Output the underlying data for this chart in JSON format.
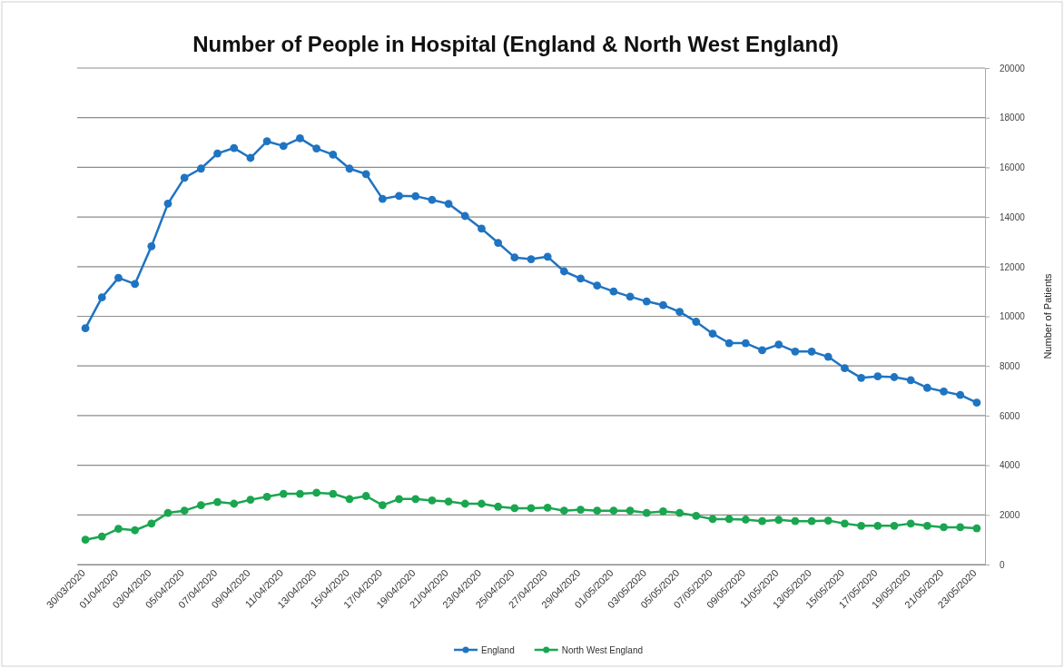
{
  "chart_data": {
    "type": "line",
    "title": "Number of People in Hospital (England & North West England)",
    "ylabel": "Number of Patients",
    "categories": [
      "30/03/2020",
      null,
      "01/04/2020",
      null,
      "03/04/2020",
      null,
      "05/04/2020",
      null,
      "07/04/2020",
      null,
      "09/04/2020",
      null,
      "11/04/2020",
      null,
      "13/04/2020",
      null,
      "15/04/2020",
      null,
      "17/04/2020",
      null,
      "19/04/2020",
      null,
      "21/04/2020",
      null,
      "23/04/2020",
      null,
      "25/04/2020",
      null,
      "27/04/2020",
      null,
      "29/04/2020",
      null,
      "01/05/2020",
      null,
      "03/05/2020",
      null,
      "05/05/2020",
      null,
      "07/05/2020",
      null,
      "09/05/2020",
      null,
      "11/05/2020",
      null,
      "13/05/2020",
      null,
      "15/05/2020",
      null,
      "17/05/2020",
      null,
      "19/05/2020",
      null,
      "21/05/2020",
      null,
      "23/05/2020"
    ],
    "series": [
      {
        "name": "England",
        "color": "#1f74c2",
        "values": [
          9520,
          10760,
          11550,
          11300,
          12820,
          14540,
          15580,
          15950,
          16560,
          16780,
          16380,
          17050,
          16860,
          17170,
          16760,
          16510,
          15950,
          15730,
          14730,
          14850,
          14840,
          14690,
          14530,
          14040,
          13530,
          12960,
          12370,
          12300,
          12400,
          11810,
          11520,
          11240,
          11000,
          10790,
          10600,
          10450,
          10180,
          9780,
          9300,
          8920,
          8920,
          8630,
          8860,
          8580,
          8580,
          8370,
          7910,
          7520,
          7580,
          7550,
          7430,
          7120,
          6970,
          6830,
          6520
        ]
      },
      {
        "name": "North West England",
        "color": "#1aa650",
        "values": [
          1000,
          1130,
          1440,
          1380,
          1650,
          2080,
          2170,
          2390,
          2520,
          2450,
          2610,
          2730,
          2850,
          2850,
          2890,
          2850,
          2640,
          2760,
          2390,
          2640,
          2640,
          2580,
          2540,
          2450,
          2450,
          2330,
          2270,
          2270,
          2290,
          2170,
          2210,
          2170,
          2170,
          2170,
          2080,
          2140,
          2080,
          1960,
          1830,
          1830,
          1810,
          1750,
          1800,
          1750,
          1750,
          1770,
          1650,
          1560,
          1560,
          1560,
          1650,
          1560,
          1500,
          1500,
          1460
        ]
      }
    ],
    "ylim": [
      0,
      20000
    ],
    "yticks": [
      0,
      2000,
      4000,
      6000,
      8000,
      10000,
      12000,
      14000,
      16000,
      18000,
      20000
    ],
    "grid": "y",
    "legend": "bottom",
    "marker": "circle",
    "line_style": "solid"
  }
}
